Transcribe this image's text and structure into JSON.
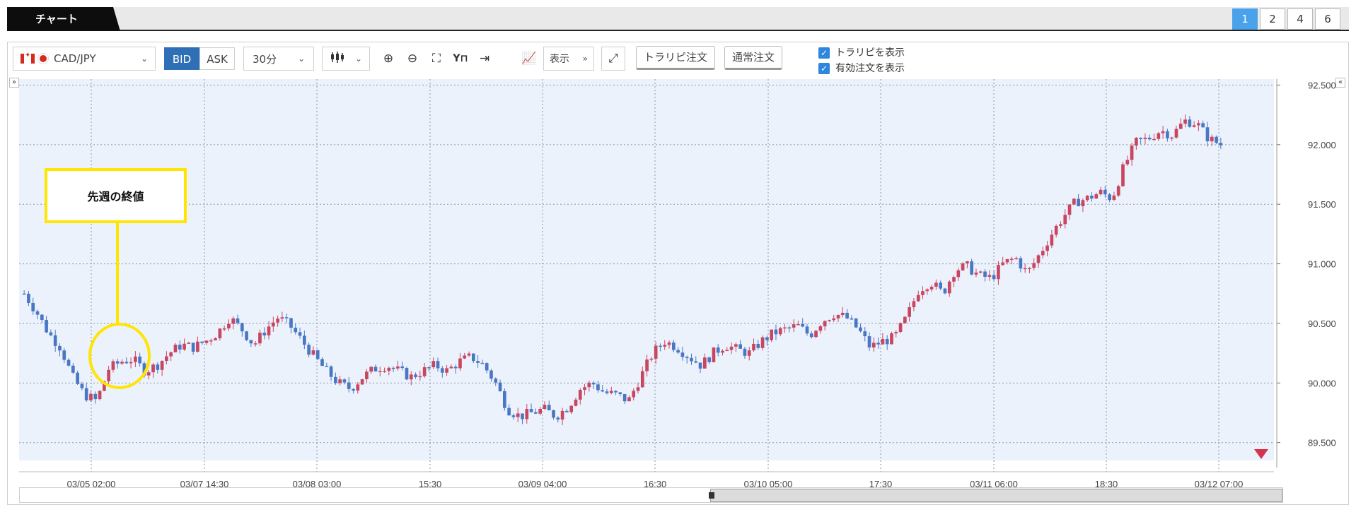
{
  "tabs": {
    "active_label": "チャート",
    "layouts": [
      "1",
      "2",
      "4",
      "6"
    ],
    "active_layout": "1"
  },
  "toolbar": {
    "pair": "CAD/JPY",
    "bid_label": "BID",
    "ask_label": "ASK",
    "timeframe": "30分",
    "display_label": "表示",
    "trap_order_label": "トラリピ注文",
    "normal_order_label": "通常注文",
    "show_trap_label": "トラリピを表示",
    "show_orders_label": "有効注文を表示"
  },
  "annotation": {
    "label": "先週の終値"
  },
  "chart_data": {
    "type": "candlestick",
    "pair": "CAD/JPY",
    "timeframe": "30分",
    "ylim": [
      89.35,
      92.55
    ],
    "y_ticks": [
      "92.500",
      "92.000",
      "91.500",
      "91.000",
      "90.500",
      "90.000",
      "89.500"
    ],
    "x_ticks": [
      "03/05 02:00",
      "03/07 14:30",
      "03/08 03:00",
      "15:30",
      "03/09 04:00",
      "16:30",
      "03/10 05:00",
      "17:30",
      "03/11 06:00",
      "18:30",
      "03/12 07:00"
    ],
    "close_path": [
      90.75,
      90.6,
      90.42,
      90.3,
      90.05,
      89.9,
      89.85,
      90.12,
      90.18,
      90.2,
      90.1,
      90.15,
      90.25,
      90.32,
      90.3,
      90.35,
      90.42,
      90.55,
      90.45,
      90.32,
      90.45,
      90.55,
      90.48,
      90.35,
      90.22,
      90.1,
      90.0,
      89.95,
      90.05,
      90.12,
      90.15,
      90.1,
      90.05,
      90.1,
      90.15,
      90.1,
      90.18,
      90.22,
      90.15,
      90.0,
      89.78,
      89.72,
      89.75,
      89.78,
      89.72,
      89.8,
      89.95,
      90.0,
      89.92,
      89.9,
      89.85,
      90.05,
      90.25,
      90.35,
      90.3,
      90.22,
      90.15,
      90.25,
      90.32,
      90.28,
      90.25,
      90.35,
      90.42,
      90.45,
      90.48,
      90.4,
      90.52,
      90.58,
      90.55,
      90.45,
      90.3,
      90.35,
      90.38,
      90.55,
      90.78,
      90.85,
      90.75,
      90.95,
      90.98,
      90.9,
      90.88,
      91.0,
      91.05,
      90.92,
      91.08,
      91.25,
      91.4,
      91.52,
      91.55,
      91.6,
      91.55,
      91.82,
      92.02,
      92.05,
      92.12,
      92.08,
      92.2,
      92.18,
      92.05,
      92.0
    ]
  }
}
